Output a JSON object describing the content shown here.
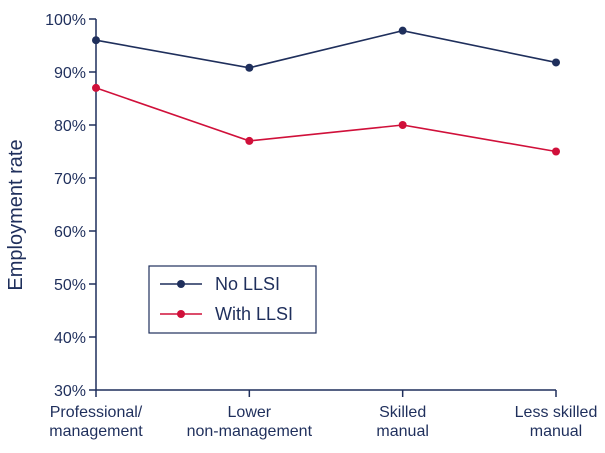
{
  "chart_data": {
    "type": "line",
    "title": "",
    "xlabel": "",
    "ylabel": "Employment rate",
    "categories": [
      [
        "Professional/",
        "management"
      ],
      [
        "Lower",
        "non-management"
      ],
      [
        "Skilled",
        "manual"
      ],
      [
        "Less skilled",
        "manual"
      ]
    ],
    "series": [
      {
        "name": "No LLSI",
        "values": [
          96,
          90.8,
          97.8,
          91.8
        ],
        "color": "#1f2f5c"
      },
      {
        "name": "With LLSI",
        "values": [
          87,
          77,
          80,
          75
        ],
        "color": "#d0103a"
      }
    ],
    "ylim": [
      30,
      100
    ],
    "yticks": [
      30,
      40,
      50,
      60,
      70,
      80,
      90,
      100
    ],
    "ytick_labels": [
      "30%",
      "40%",
      "50%",
      "60%",
      "70%",
      "80%",
      "90%",
      "100%"
    ],
    "grid": false,
    "legend_position": "lower-left",
    "axis_color": "#1f2f5c"
  }
}
